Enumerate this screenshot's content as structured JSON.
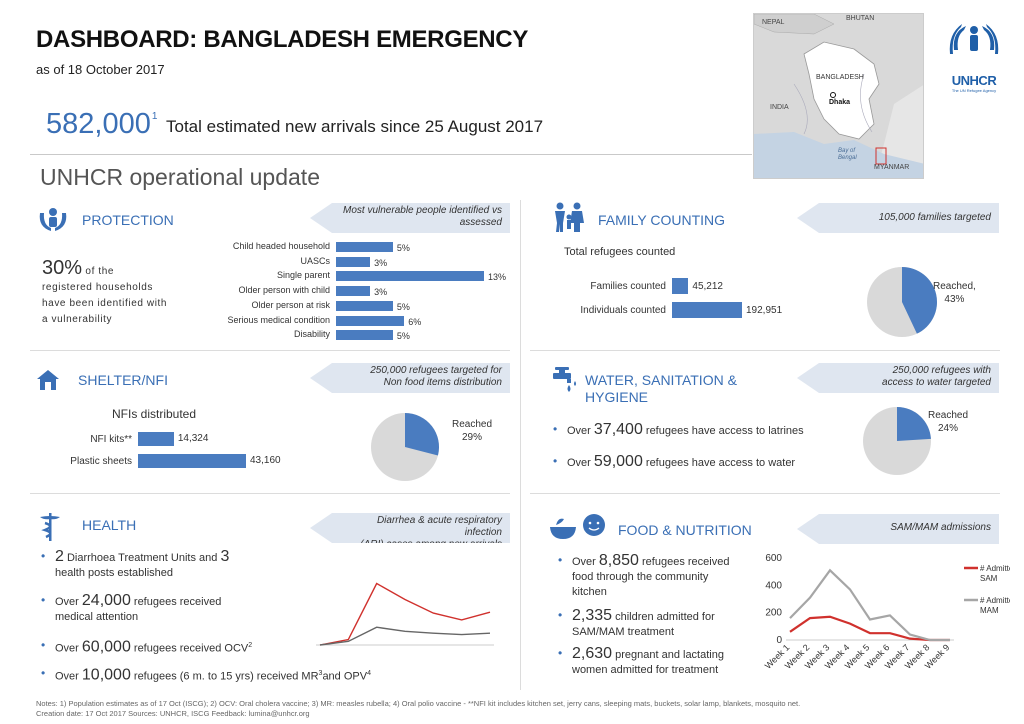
{
  "header": {
    "title": "DASHBOARD: BANGLADESH EMERGENCY",
    "as_of": "as of 18 October 2017",
    "big_number": "582,000",
    "big_number_sup": "1",
    "big_text": "Total estimated new arrivals since 25 August 2017",
    "subheading": "UNHCR operational update"
  },
  "map": {
    "labels": [
      "NEPAL",
      "BHUTAN",
      "BANGLADESH",
      "INDIA",
      "Dhaka",
      "Bay of Bengal",
      "MYANMAR"
    ]
  },
  "logo": {
    "name": "UNHCR",
    "tagline": "The UN Refugee Agency"
  },
  "protection": {
    "title": "PROTECTION",
    "banner": "Most vulnerable people identified vs assessed",
    "stat_pct": "30%",
    "stat_text_1": "of the",
    "stat_text_2": "registered households",
    "stat_text_3": "have been identified with",
    "stat_text_4": "a vulnerability",
    "bars": [
      {
        "label": "Child headed household",
        "value": 5,
        "display": "5%"
      },
      {
        "label": "UASCs",
        "value": 3,
        "display": "3%"
      },
      {
        "label": "Single parent",
        "value": 13,
        "display": "13%"
      },
      {
        "label": "Older person with child",
        "value": 3,
        "display": "3%"
      },
      {
        "label": "Older person at risk",
        "value": 5,
        "display": "5%"
      },
      {
        "label": "Serious medical condition",
        "value": 6,
        "display": "6%"
      },
      {
        "label": "Disability",
        "value": 5,
        "display": "5%"
      }
    ]
  },
  "family": {
    "title": "FAMILY COUNTING",
    "banner": "105,000 families targeted",
    "subtitle": "Total refugees counted",
    "bars": [
      {
        "label": "Families counted",
        "value": 45212,
        "display": "45,212"
      },
      {
        "label": "Individuals counted",
        "value": 192951,
        "display": "192,951"
      }
    ],
    "pie_label_1": "Reached,",
    "pie_label_2": "43%",
    "pie_value": 43
  },
  "shelter": {
    "title": "SHELTER/NFI",
    "banner_1": "250,000 refugees targeted for",
    "banner_2": "Non food items distribution",
    "subtitle": "NFIs distributed",
    "bars": [
      {
        "label": "NFI kits**",
        "value": 14324,
        "display": "14,324"
      },
      {
        "label": "Plastic sheets",
        "value": 43160,
        "display": "43,160"
      }
    ],
    "pie_label_1": "Reached",
    "pie_label_2": "29%",
    "pie_value": 29
  },
  "wash": {
    "title_1": "WATER, SANITATION &",
    "title_2": "HYGIENE",
    "banner_1": "250,000 refugees with",
    "banner_2": "access to water targeted",
    "b1_pre": "Over",
    "b1_num": "37,400",
    "b1_post": "refugees have access to latrines",
    "b2_pre": "Over",
    "b2_num": "59,000",
    "b2_post": "refugees have access to water",
    "pie_label_1": "Reached",
    "pie_label_2": "24%",
    "pie_value": 24
  },
  "health": {
    "title": "HEALTH",
    "banner_1": "Diarrhea & acute respiratory infection",
    "banner_2": "(ARI) cases among new arrivals",
    "b1_num1": "2",
    "b1_mid": "Diarrhoea Treatment Units and",
    "b1_num2": "3",
    "b1_post": "health posts established",
    "b2_pre": "Over",
    "b2_num": "24,000",
    "b2_post1": "refugees received",
    "b2_post2": "medical attention",
    "b3_pre": "Over",
    "b3_num": "60,000",
    "b3_post": "refugees received OCV",
    "b3_sup": "2",
    "b4_pre": "Over",
    "b4_num": "10,000",
    "b4_post": "refugees (6 m. to 15 yrs) received MR",
    "b4_sup1": "3",
    "b4_and": "and OPV",
    "b4_sup2": "4"
  },
  "food": {
    "title": "FOOD & NUTRITION",
    "banner": "SAM/MAM admissions",
    "b1_pre": "Over",
    "b1_num": "8,850",
    "b1_post1": "refugees received",
    "b1_post2": "food through the community",
    "b1_post3": "kitchen",
    "b2_num": "2,335",
    "b2_post1": "children admitted for",
    "b2_post2": "SAM/MAM treatment",
    "b3_num": "2,630",
    "b3_post1": "pregnant and lactating",
    "b3_post2": "women admitted for treatment"
  },
  "chart_data": [
    {
      "type": "line",
      "title": "SAM/MAM admissions",
      "x": [
        "Week 1",
        "Week 2",
        "Week 3",
        "Week 4",
        "Week 5",
        "Week 6",
        "Week 7",
        "Week 8",
        "Week 9"
      ],
      "ylim": [
        0,
        600
      ],
      "yticks": [
        "0",
        "200",
        "400",
        "600"
      ],
      "series": [
        {
          "name": "# Admitted as SAM",
          "color": "#d0312d",
          "values": [
            60,
            160,
            170,
            120,
            50,
            50,
            10,
            0,
            0
          ]
        },
        {
          "name": "# Admitted as MAM",
          "color": "#a6a6a6",
          "values": [
            160,
            310,
            510,
            370,
            150,
            180,
            40,
            0,
            0
          ]
        }
      ],
      "legend": "right"
    },
    {
      "type": "line",
      "title": "Diarrhea & acute respiratory infection (ARI) cases among new arrivals",
      "ylim": [
        0,
        1800
      ],
      "series": [
        {
          "color": "#d0312d",
          "values": [
            0,
            120,
            1350,
            1000,
            700,
            550,
            720
          ]
        },
        {
          "color": "#666666",
          "values": [
            0,
            80,
            390,
            300,
            260,
            230,
            260
          ]
        }
      ]
    }
  ],
  "notes": {
    "line1": "Notes: 1) Population estimates as of 17 Oct (ISCG); 2) OCV: Oral cholera vaccine; 3) MR: measles rubella; 4) Oral polio vaccine - **NFI kit includes kitchen set, jerry cans, sleeping mats, buckets, solar lamp, blankets, mosquito net.",
    "line2": "Creation date: 17 Oct 2017    Sources: UNHCR, ISCG    Feedback: lumina@unhcr.org"
  }
}
